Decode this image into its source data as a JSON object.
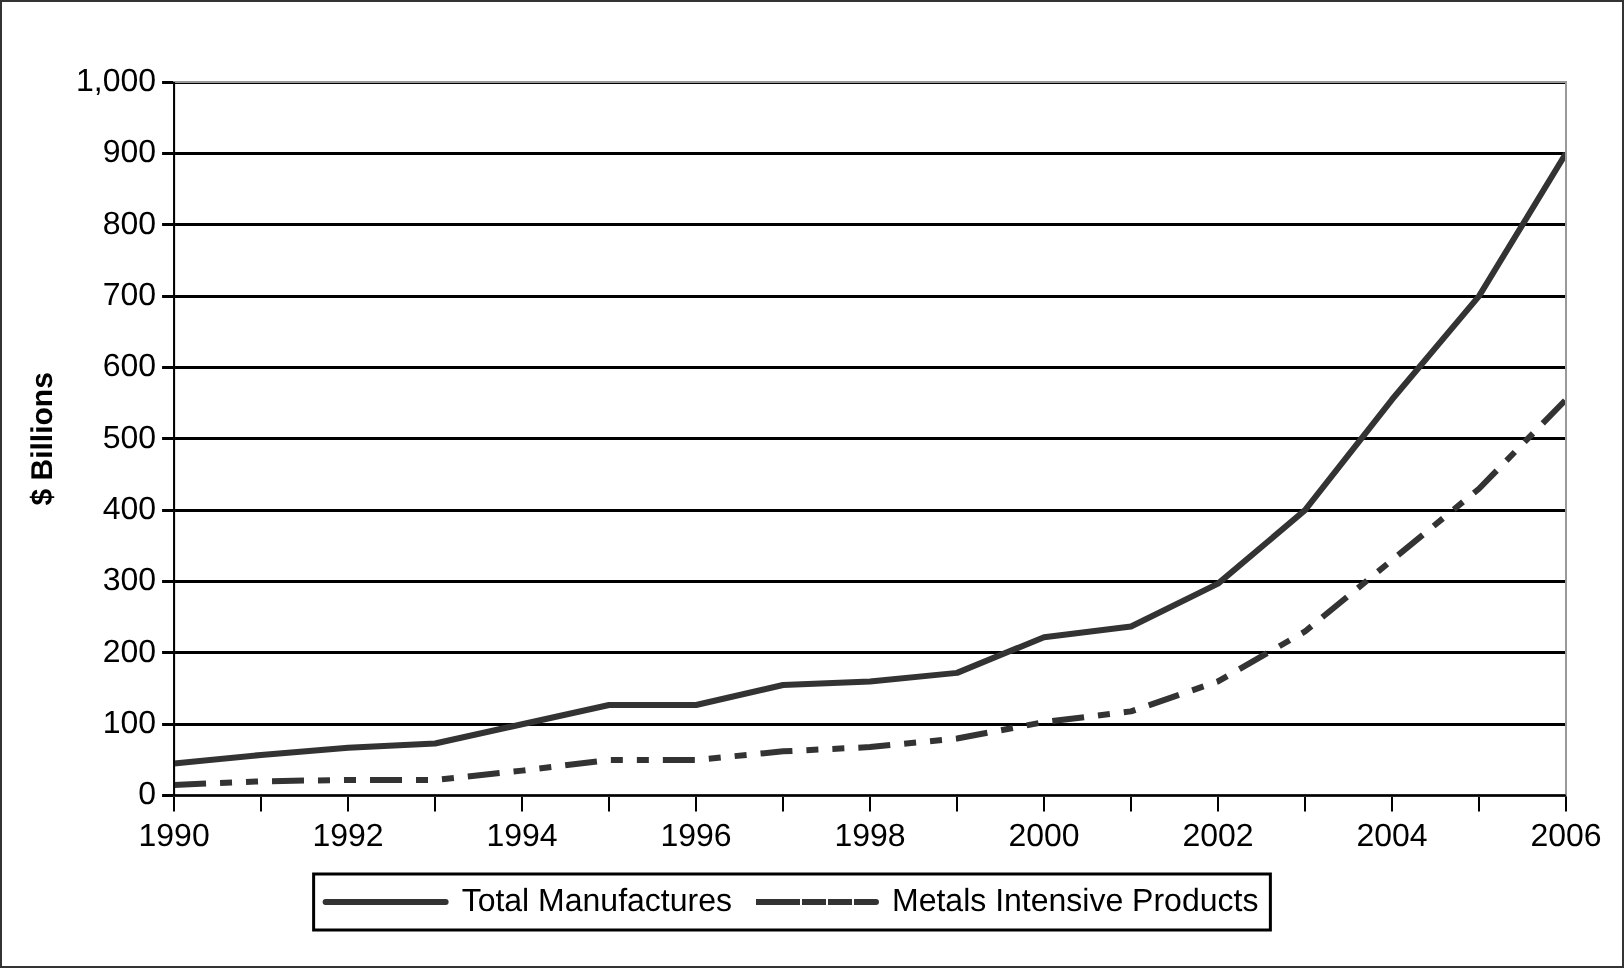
{
  "chart_data": {
    "type": "line",
    "ylabel": "$ Billions",
    "x": [
      1990,
      1991,
      1992,
      1993,
      1994,
      1995,
      1996,
      1997,
      1998,
      1999,
      2000,
      2001,
      2002,
      2003,
      2004,
      2005,
      2006
    ],
    "series": [
      {
        "name": "Total Manufactures",
        "color": "#333333",
        "line_style": "solid",
        "values": [
          45,
          57,
          67,
          73,
          100,
          127,
          127,
          155,
          160,
          172,
          222,
          237,
          297,
          400,
          555,
          700,
          900
        ]
      },
      {
        "name": "Metals Intensive Products",
        "color": "#333333",
        "line_style": "dashed",
        "values": [
          15,
          20,
          22,
          22,
          35,
          50,
          50,
          62,
          68,
          80,
          103,
          118,
          160,
          230,
          330,
          430,
          555
        ]
      }
    ],
    "xlim": [
      1990,
      2006
    ],
    "xticks": [
      1990,
      {
        "value": 1991,
        "label": null
      },
      1992,
      {
        "value": 1993,
        "label": null
      },
      1994,
      {
        "value": 1995,
        "label": null
      },
      1996,
      {
        "value": 1997,
        "label": null
      },
      1998,
      {
        "value": 1999,
        "label": null
      },
      2000,
      {
        "value": 2001,
        "label": null
      },
      2002,
      {
        "value": 2003,
        "label": null
      },
      2004,
      {
        "value": 2005,
        "label": null
      },
      2006
    ],
    "ylim": [
      0,
      1000
    ],
    "yticks": [
      0,
      100,
      200,
      300,
      400,
      500,
      600,
      700,
      800,
      900,
      {
        "value": 1000,
        "label": "1,000"
      }
    ],
    "grid": "y",
    "legend": "bottom",
    "marker": "none"
  }
}
